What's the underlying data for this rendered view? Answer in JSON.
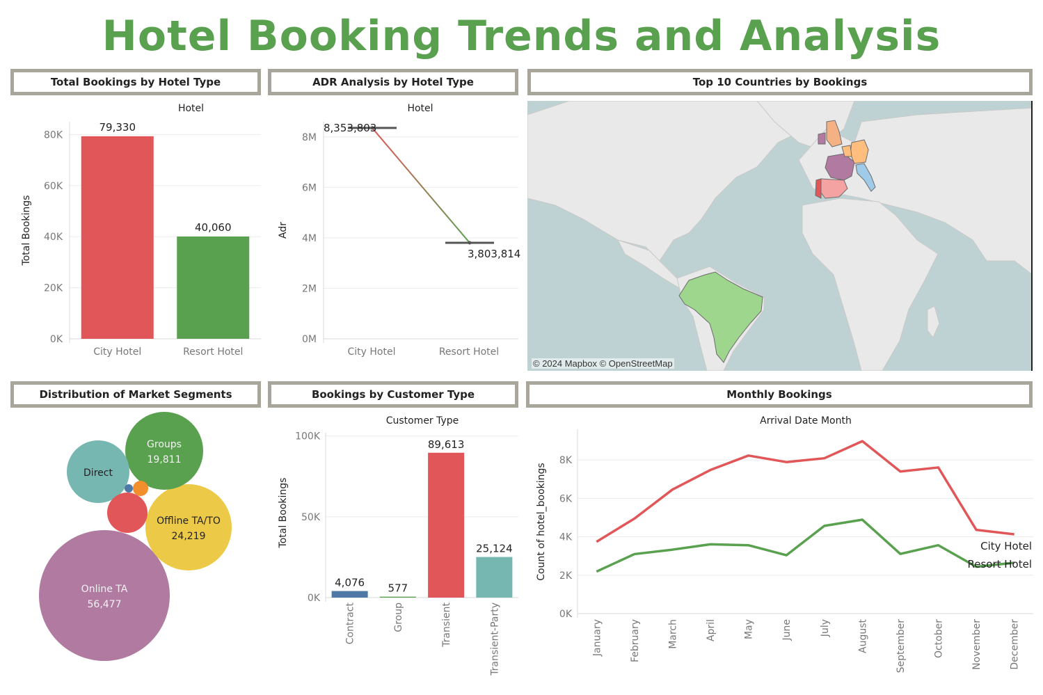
{
  "dashboard": {
    "title": "Hotel Booking Trends and Analysis",
    "title_color": "#59a14f"
  },
  "panels": {
    "bookings_by_hotel": "Total Bookings by Hotel Type",
    "adr_by_hotel": "ADR Analysis by Hotel Type",
    "top_countries": "Top 10 Countries by Bookings",
    "market_segments": "Distribution of Market Segments",
    "customer_type": "Bookings by Customer Type",
    "monthly": "Monthly Bookings"
  },
  "colors": {
    "red": "#e15759",
    "green": "#59a14f",
    "blue": "#4e79a7",
    "teal": "#76b7b2",
    "yellow": "#edc948",
    "purple": "#b07aa1",
    "orange": "#f28e2b",
    "panel_border": "#a8a69a"
  },
  "map": {
    "credit": "© 2024 Mapbox © OpenStreetMap"
  },
  "chart_data": [
    {
      "id": "bookings_by_hotel",
      "type": "bar",
      "header": "Hotel",
      "categories": [
        "City Hotel",
        "Resort Hotel"
      ],
      "values": [
        79330,
        40060
      ],
      "value_labels": [
        "79,330",
        "40,060"
      ],
      "colors": [
        "#e15759",
        "#59a14f"
      ],
      "ylabel": "Total Bookings",
      "ylim": [
        0,
        85000
      ],
      "yticks": [
        0,
        20000,
        40000,
        60000,
        80000
      ],
      "ytick_labels": [
        "0K",
        "20K",
        "40K",
        "60K",
        "80K"
      ],
      "grid": true
    },
    {
      "id": "adr_by_hotel",
      "type": "line",
      "header": "Hotel",
      "categories": [
        "City Hotel",
        "Resort Hotel"
      ],
      "values": [
        8353803,
        3803814
      ],
      "value_labels": [
        "8,353,803",
        "3,803,814"
      ],
      "ylabel": "Adr",
      "ylim": [
        0,
        8600000
      ],
      "yticks": [
        0,
        2000000,
        4000000,
        6000000,
        8000000
      ],
      "ytick_labels": [
        "0M",
        "2M",
        "4M",
        "6M",
        "8M"
      ],
      "grid": true
    },
    {
      "id": "top_countries",
      "type": "map",
      "highlighted": [
        "United Kingdom",
        "Ireland",
        "Belgium",
        "Netherlands",
        "Germany",
        "France",
        "Spain",
        "Portugal",
        "Italy",
        "Brazil"
      ]
    },
    {
      "id": "market_segments",
      "type": "bubble",
      "bubbles": [
        {
          "name": "Online TA",
          "value": 56477,
          "value_label": "56,477",
          "color": "#b07aa1"
        },
        {
          "name": "Offline TA/TO",
          "value": 24219,
          "value_label": "24,219",
          "color": "#edc948"
        },
        {
          "name": "Groups",
          "value": 19811,
          "value_label": "19,811",
          "color": "#59a14f"
        },
        {
          "name": "Direct",
          "value": null,
          "value_label": "",
          "color": "#76b7b2"
        },
        {
          "name": "",
          "value": null,
          "value_label": "",
          "color": "#e15759"
        },
        {
          "name": "",
          "value": null,
          "value_label": "",
          "color": "#f28e2b"
        },
        {
          "name": "",
          "value": null,
          "value_label": "",
          "color": "#4e79a7"
        }
      ]
    },
    {
      "id": "customer_type",
      "type": "bar",
      "header": "Customer Type",
      "categories": [
        "Contract",
        "Group",
        "Transient",
        "Transient-Party"
      ],
      "values": [
        4076,
        577,
        89613,
        25124
      ],
      "value_labels": [
        "4,076",
        "577",
        "89,613",
        "25,124"
      ],
      "colors": [
        "#4e79a7",
        "#59a14f",
        "#e15759",
        "#76b7b2"
      ],
      "ylabel": "Total Bookings",
      "ylim": [
        0,
        102000
      ],
      "yticks": [
        0,
        50000,
        100000
      ],
      "ytick_labels": [
        "0K",
        "50K",
        "100K"
      ],
      "grid": true
    },
    {
      "id": "monthly",
      "type": "line",
      "header": "Arrival Date Month",
      "categories": [
        "January",
        "February",
        "March",
        "April",
        "May",
        "June",
        "July",
        "August",
        "September",
        "October",
        "November",
        "December"
      ],
      "series": [
        {
          "name": "City Hotel",
          "color": "#e15759",
          "values": [
            3740,
            4950,
            6460,
            7480,
            8230,
            7890,
            8090,
            8980,
            7400,
            7610,
            4360,
            4130
          ]
        },
        {
          "name": "Resort Hotel",
          "color": "#59a14f",
          "values": [
            2190,
            3100,
            3330,
            3610,
            3560,
            3040,
            4570,
            4890,
            3110,
            3560,
            2440,
            2650
          ]
        }
      ],
      "ylabel": "Count of hotel_bookings",
      "ylim": [
        0,
        9600
      ],
      "yticks": [
        0,
        2000,
        4000,
        6000,
        8000
      ],
      "ytick_labels": [
        "0K",
        "2K",
        "4K",
        "6K",
        "8K"
      ],
      "grid": true
    }
  ]
}
